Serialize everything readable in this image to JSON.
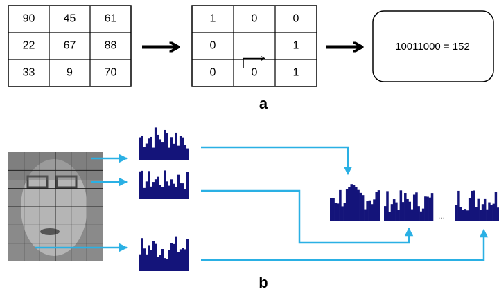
{
  "panel_a": {
    "label": "a",
    "intensities": {
      "rows": [
        [
          90,
          45,
          61
        ],
        [
          22,
          67,
          88
        ],
        [
          33,
          9,
          70
        ]
      ]
    },
    "binary": {
      "rows": [
        [
          1,
          0,
          0
        ],
        [
          0,
          null,
          1
        ],
        [
          0,
          0,
          1
        ]
      ]
    },
    "result": "10011000 =  152"
  },
  "panel_b": {
    "label": "b",
    "ellipsis": "..."
  }
}
